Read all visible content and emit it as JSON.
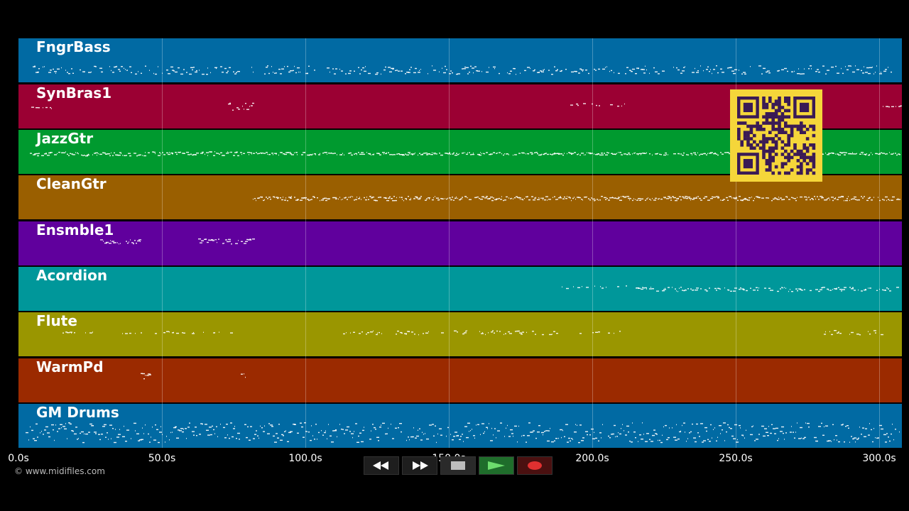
{
  "tracks": [
    {
      "name": "FngrBass",
      "color": "#016aa3"
    },
    {
      "name": "SynBras1",
      "color": "#9b0033"
    },
    {
      "name": "JazzGtr",
      "color": "#009a2f"
    },
    {
      "name": "CleanGtr",
      "color": "#9a5f00"
    },
    {
      "name": "Ensmble1",
      "color": "#60009d"
    },
    {
      "name": "Acordion",
      "color": "#00979a"
    },
    {
      "name": "Flute",
      "color": "#9a9600"
    },
    {
      "name": "WarmPd",
      "color": "#9b2a00"
    },
    {
      "name": "GM Drums",
      "color": "#016aa3"
    }
  ],
  "timeline": {
    "ticks": [
      "0.0s",
      "50.0s",
      "100.0s",
      "150.0s",
      "200.0s",
      "250.0s",
      "300.0s"
    ]
  },
  "copyright": "© www.midifiles.com",
  "transport": {
    "rewind_icon": "rewind-icon",
    "forward_icon": "fast-forward-icon",
    "stop_icon": "stop-icon",
    "play_icon": "play-icon",
    "record_icon": "record-icon"
  }
}
